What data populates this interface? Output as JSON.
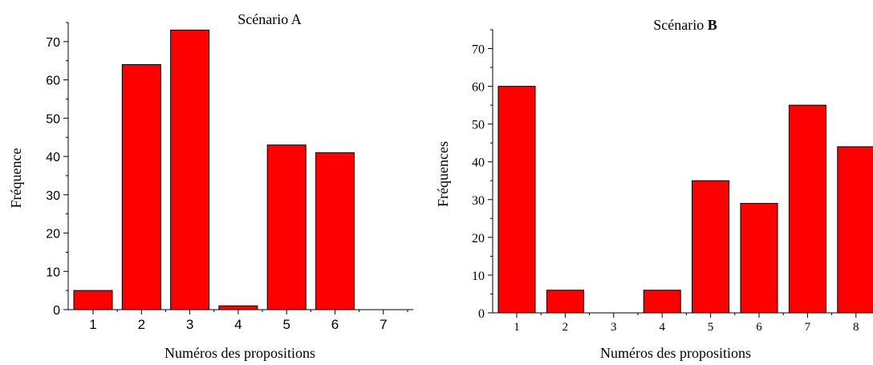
{
  "chart_data": [
    {
      "type": "bar",
      "title": "Scénario A",
      "xlabel": "Numéros des propositions",
      "ylabel": "Fréquence",
      "categories": [
        "1",
        "2",
        "3",
        "4",
        "5",
        "6",
        "7"
      ],
      "values": [
        5,
        64,
        73,
        1,
        43,
        41,
        0
      ],
      "ylim": [
        0,
        75
      ],
      "yticks": [
        0,
        10,
        20,
        30,
        40,
        50,
        60,
        70
      ],
      "yticklabels": [
        "0",
        "10",
        "20",
        "30",
        "40",
        "50",
        "60",
        "70"
      ],
      "grid": false,
      "bar_color": "#ff0000"
    },
    {
      "type": "bar",
      "title_plain": "Scénario ",
      "title_bold": "B",
      "xlabel": "Numéros des propositions",
      "ylabel": "Fréquences",
      "categories": [
        "1",
        "2",
        "3",
        "4",
        "5",
        "6",
        "7",
        "8"
      ],
      "values": [
        60,
        6,
        0,
        6,
        35,
        29,
        55,
        44
      ],
      "ylim": [
        0,
        75
      ],
      "yticks": [
        0,
        10,
        20,
        30,
        40,
        50,
        60,
        70
      ],
      "yticklabels": [
        "0",
        "10",
        "20",
        "30",
        "40",
        "50",
        "60",
        "70"
      ],
      "grid": false,
      "bar_color": "#ff0000"
    }
  ]
}
